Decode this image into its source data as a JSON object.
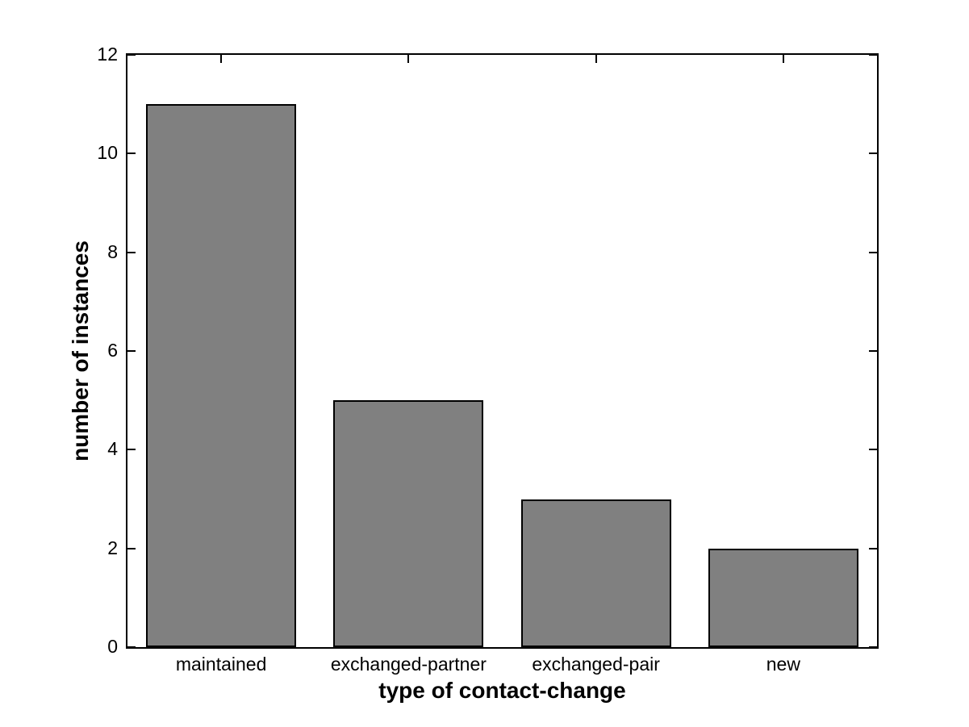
{
  "figure": {
    "background": "#ffffff",
    "bar_fill": "#808080",
    "bar_edge": "#000000",
    "axis_color": "#000000"
  },
  "chart_data": {
    "type": "bar",
    "categories": [
      "maintained",
      "exchanged-partner",
      "exchanged-pair",
      "new"
    ],
    "values": [
      11,
      5,
      3,
      2
    ],
    "title": "",
    "xlabel": "type of contact-change",
    "ylabel": "number of instances",
    "ylim": [
      0,
      12
    ],
    "yticks": [
      0,
      2,
      4,
      6,
      8,
      10,
      12
    ],
    "bar_width_fraction": 0.8,
    "grid": false,
    "legend_position": "none"
  }
}
